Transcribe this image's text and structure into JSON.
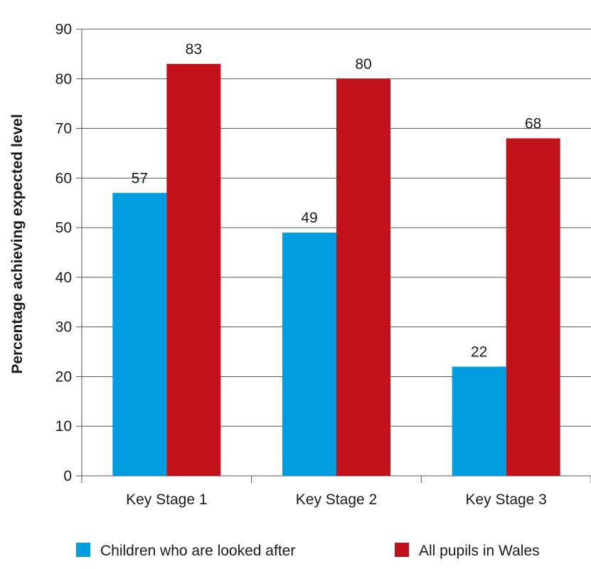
{
  "chart_data": {
    "type": "bar",
    "title": "",
    "xlabel": "",
    "ylabel": "Percentage achieving expected level",
    "categories": [
      "Key Stage 1",
      "Key Stage 2",
      "Key Stage 3"
    ],
    "series": [
      {
        "name": "Children who are looked after",
        "values": [
          57,
          49,
          22
        ],
        "color": "#009ee0"
      },
      {
        "name": "All pupils in Wales",
        "values": [
          83,
          80,
          68
        ],
        "color": "#c1121c"
      }
    ],
    "ylim": [
      0,
      90
    ],
    "yticks": [
      0,
      10,
      20,
      30,
      40,
      50,
      60,
      70,
      80,
      90
    ],
    "grid": true,
    "legend_position": "bottom"
  }
}
